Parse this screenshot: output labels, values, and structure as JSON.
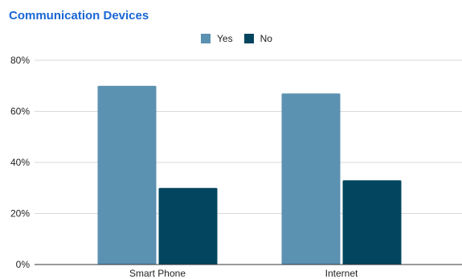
{
  "chart_data": {
    "type": "bar",
    "title": "Communication Devices",
    "categories": [
      "Smart Phone",
      "Internet"
    ],
    "series": [
      {
        "name": "Yes",
        "values": [
          70,
          67
        ],
        "color": "#5b91b1"
      },
      {
        "name": "No",
        "values": [
          30,
          33
        ],
        "color": "#03455e"
      }
    ],
    "xlabel": "",
    "ylabel": "",
    "ylim": [
      0,
      80
    ],
    "yticks": [
      0,
      20,
      40,
      60,
      80
    ],
    "ytick_labels": [
      "0%",
      "20%",
      "40%",
      "60%",
      "80%"
    ],
    "grid": true,
    "legend_position": "top-center"
  }
}
